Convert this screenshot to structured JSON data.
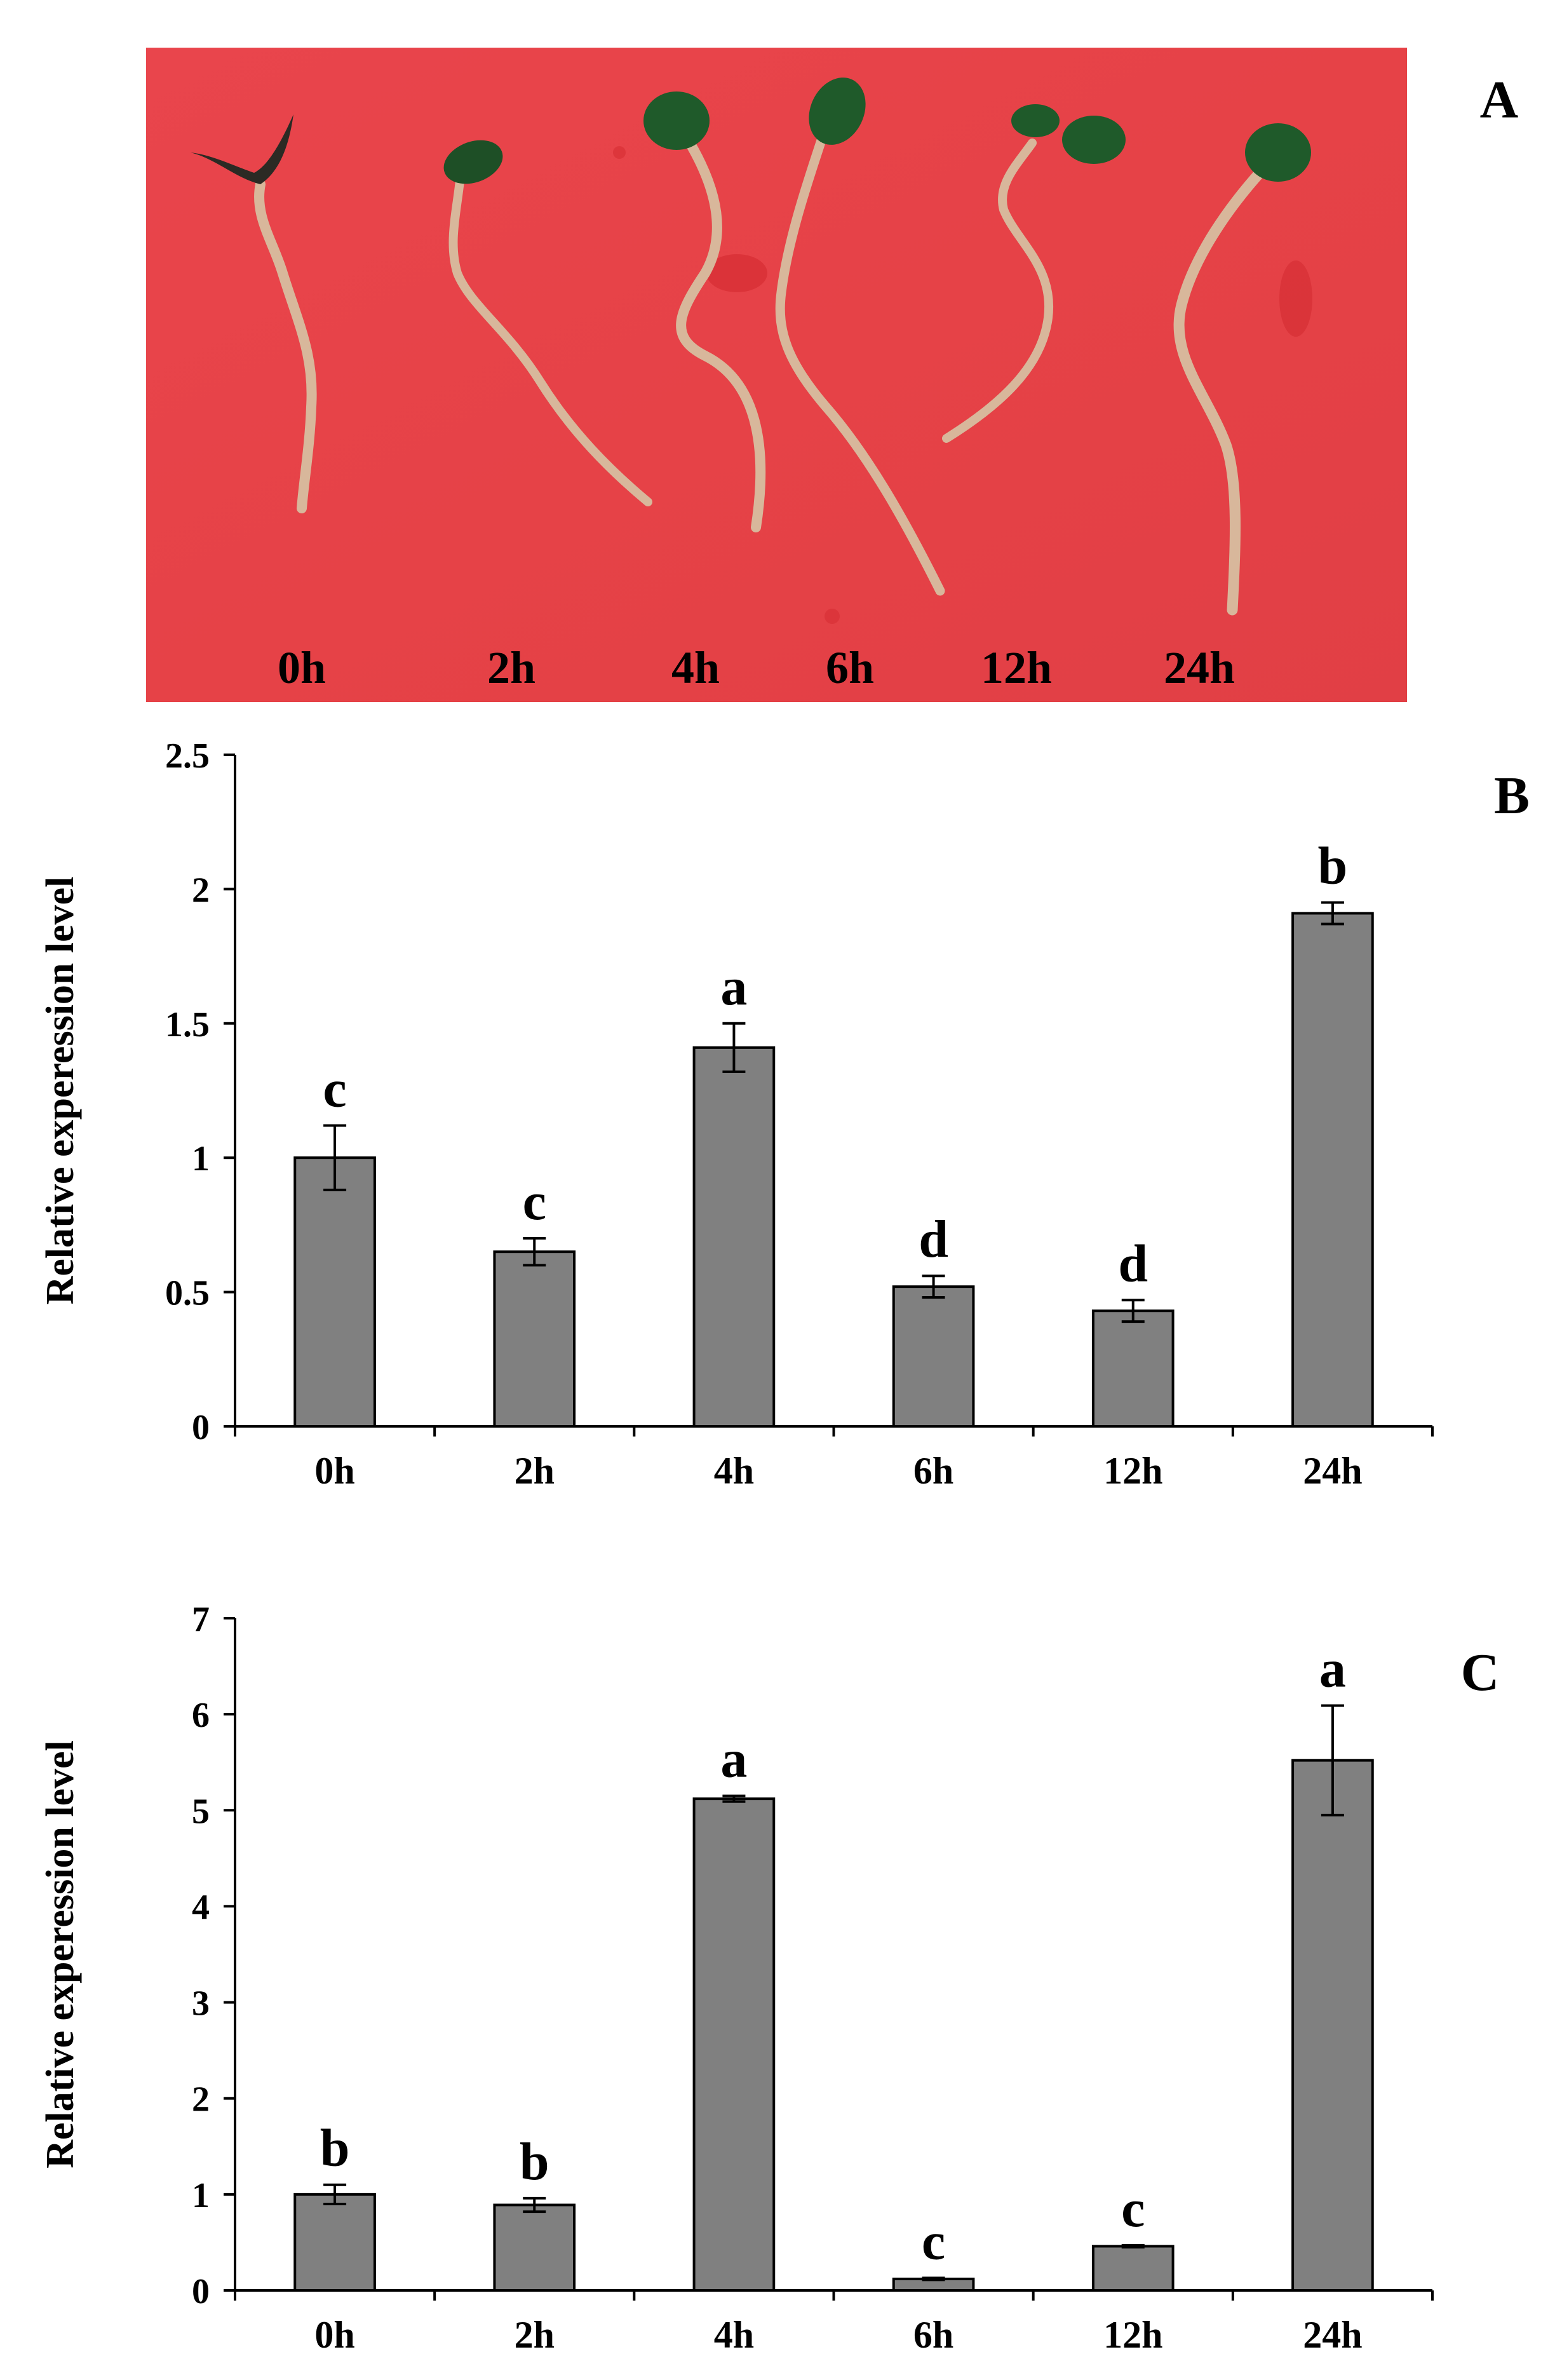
{
  "photo_panel": {
    "panel_label": "A",
    "time_labels": [
      "0h",
      "2h",
      "4h",
      "6h",
      "12h",
      "24h"
    ],
    "background_color": "#e8444a",
    "seedling_stem_color": "#d9b79a",
    "cotyledon_color": "#1f5a2a"
  },
  "chart_data": [
    {
      "type": "bar",
      "panel_label": "B",
      "categories": [
        "0h",
        "2h",
        "4h",
        "6h",
        "12h",
        "24h"
      ],
      "values": [
        1.0,
        0.65,
        1.41,
        0.52,
        0.43,
        1.91
      ],
      "errors": [
        0.12,
        0.05,
        0.09,
        0.04,
        0.04,
        0.04
      ],
      "significance_letters": [
        "c",
        "c",
        "a",
        "d",
        "d",
        "b"
      ],
      "ylabel": "Relative experession level",
      "ylim": [
        0,
        2.5
      ],
      "yticks": [
        0,
        0.5,
        1,
        1.5,
        2,
        2.5
      ],
      "ytick_labels": [
        "0",
        "0.5",
        "1",
        "1.5",
        "2",
        "2.5"
      ],
      "bar_color": "#808080",
      "grid": false,
      "legend": "none"
    },
    {
      "type": "bar",
      "panel_label": "C",
      "categories": [
        "0h",
        "2h",
        "4h",
        "6h",
        "12h",
        "24h"
      ],
      "values": [
        1.0,
        0.89,
        5.12,
        0.12,
        0.46,
        5.52
      ],
      "errors": [
        0.1,
        0.07,
        0.03,
        0.01,
        0.01,
        0.57
      ],
      "significance_letters": [
        "b",
        "b",
        "a",
        "c",
        "c",
        "a"
      ],
      "ylabel": "Relative experession level",
      "ylim": [
        0,
        7
      ],
      "yticks": [
        0,
        1,
        2,
        3,
        4,
        5,
        6,
        7
      ],
      "ytick_labels": [
        "0",
        "1",
        "2",
        "3",
        "4",
        "5",
        "6",
        "7"
      ],
      "bar_color": "#808080",
      "grid": false,
      "legend": "none"
    }
  ]
}
